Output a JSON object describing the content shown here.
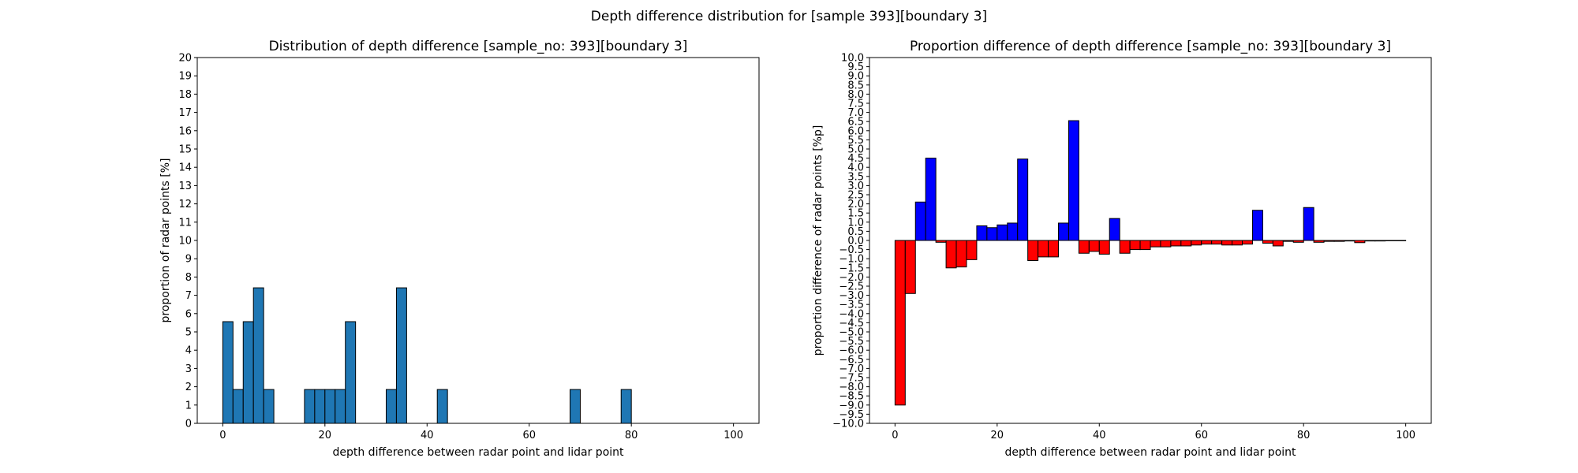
{
  "figure": {
    "suptitle": "Depth difference distribution for [sample 393][boundary 3]"
  },
  "chart_data": [
    {
      "type": "bar",
      "title": "Distribution of depth difference [sample_no: 393][boundary 3]",
      "xlabel": "depth difference between radar point and lidar point",
      "ylabel": "proportion of radar points [%]",
      "xlim": [
        -5,
        105
      ],
      "ylim": [
        0,
        20
      ],
      "xticks": [
        0,
        20,
        40,
        60,
        80,
        100
      ],
      "yticks": [
        0,
        1,
        2,
        3,
        4,
        5,
        6,
        7,
        8,
        9,
        10,
        11,
        12,
        13,
        14,
        15,
        16,
        17,
        18,
        19,
        20
      ],
      "bin_width": 2,
      "bar_color": "#1f77b4",
      "edge_color": "#000000",
      "x": [
        0,
        2,
        4,
        6,
        8,
        16,
        18,
        20,
        22,
        24,
        32,
        34,
        42,
        68,
        78
      ],
      "values": [
        5.56,
        1.85,
        5.56,
        7.41,
        1.85,
        1.85,
        1.85,
        1.85,
        1.85,
        5.56,
        1.85,
        7.41,
        1.85,
        1.85,
        1.85
      ],
      "grid": false
    },
    {
      "type": "bar",
      "title": "Proportion difference of depth difference [sample_no: 393][boundary 3]",
      "xlabel": "depth difference between radar point and lidar point",
      "ylabel": "proportion difference of radar points [%p]",
      "xlim": [
        -5,
        105
      ],
      "ylim": [
        -10,
        10
      ],
      "xticks": [
        0,
        20,
        40,
        60,
        80,
        100
      ],
      "yticks": [
        -10,
        -9.5,
        -9,
        -8.5,
        -8,
        -7.5,
        -7,
        -6.5,
        -6,
        -5.5,
        -5,
        -4.5,
        -4,
        -3.5,
        -3,
        -2.5,
        -2,
        -1.5,
        -1,
        -0.5,
        0,
        0.5,
        1,
        1.5,
        2,
        2.5,
        3,
        3.5,
        4,
        4.5,
        5,
        5.5,
        6,
        6.5,
        7,
        7.5,
        8,
        8.5,
        9,
        9.5,
        10
      ],
      "bin_width": 2,
      "positive_color": "#0000ff",
      "negative_color": "#ff0000",
      "edge_color": "#000000",
      "x": [
        0,
        2,
        4,
        6,
        8,
        10,
        12,
        14,
        16,
        18,
        20,
        22,
        24,
        26,
        28,
        30,
        32,
        34,
        36,
        38,
        40,
        42,
        44,
        46,
        48,
        50,
        52,
        54,
        56,
        58,
        60,
        62,
        64,
        66,
        68,
        70,
        72,
        74,
        76,
        78,
        80,
        82,
        84,
        86,
        88,
        90,
        92,
        94,
        96,
        98
      ],
      "values": [
        -9.0,
        -2.9,
        2.1,
        4.5,
        -0.1,
        -1.5,
        -1.45,
        -1.05,
        0.8,
        0.7,
        0.85,
        0.95,
        4.45,
        -1.1,
        -0.9,
        -0.9,
        0.95,
        6.55,
        -0.7,
        -0.6,
        -0.75,
        1.2,
        -0.7,
        -0.5,
        -0.5,
        -0.35,
        -0.35,
        -0.3,
        -0.3,
        -0.25,
        -0.2,
        -0.2,
        -0.25,
        -0.25,
        -0.2,
        1.65,
        -0.15,
        -0.3,
        -0.05,
        -0.1,
        1.8,
        -0.1,
        -0.05,
        -0.05,
        -0.03,
        -0.12,
        -0.03,
        -0.03,
        -0.02,
        -0.02
      ],
      "grid": false
    }
  ]
}
